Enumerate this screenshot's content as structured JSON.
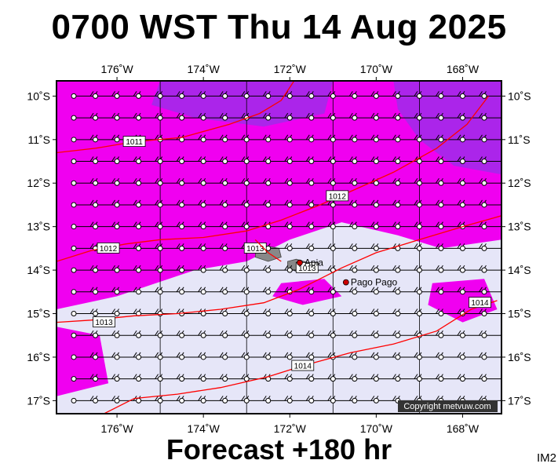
{
  "title": "0700 WST Thu 14 Aug 2025",
  "subtitle": "Forecast +180 hr",
  "map_id": "IM2",
  "copyright": "Copyright metvuw.com",
  "colors": {
    "background": "#e6e6f8",
    "wind_strong": "#f000f0",
    "wind_very_strong": "#9a2ee8",
    "isobar": "#ff0000",
    "land": "#888888",
    "frame": "#000000"
  },
  "map_extent": {
    "lon_min": -177.4,
    "lon_max": -167.1,
    "lat_min": -17.3,
    "lat_max": -9.65
  },
  "x_ticks": [
    {
      "value": -176,
      "label": "176˚W"
    },
    {
      "value": -174,
      "label": "174˚W"
    },
    {
      "value": -172,
      "label": "172˚W"
    },
    {
      "value": -170,
      "label": "170˚W"
    },
    {
      "value": -168,
      "label": "168˚W"
    }
  ],
  "y_ticks": [
    {
      "value": -10,
      "label": "10˚S"
    },
    {
      "value": -11,
      "label": "11˚S"
    },
    {
      "value": -12,
      "label": "12˚S"
    },
    {
      "value": -13,
      "label": "13˚S"
    },
    {
      "value": -14,
      "label": "14˚S"
    },
    {
      "value": -15,
      "label": "15˚S"
    },
    {
      "value": -16,
      "label": "16˚S"
    },
    {
      "value": -17,
      "label": "17˚S"
    }
  ],
  "isobars": [
    {
      "value": 1011,
      "label": "1011",
      "label_at": [
        -175.6,
        -11.05
      ],
      "points": [
        [
          -177.4,
          -11.3
        ],
        [
          -176.5,
          -11.2
        ],
        [
          -175.6,
          -11.05
        ],
        [
          -174.5,
          -10.95
        ],
        [
          -173.4,
          -10.65
        ],
        [
          -172.7,
          -10.4
        ],
        [
          -172.2,
          -10.1
        ],
        [
          -171.9,
          -9.65
        ]
      ]
    },
    {
      "value": 1012,
      "label": "1012",
      "label_at": [
        -176.2,
        -13.5
      ],
      "points": [
        [
          -177.4,
          -13.8
        ],
        [
          -176.6,
          -13.55
        ],
        [
          -175.8,
          -13.4
        ],
        [
          -175.0,
          -13.3
        ],
        [
          -174.0,
          -13.25
        ],
        [
          -173.0,
          -13.1
        ],
        [
          -172.2,
          -12.85
        ],
        [
          -171.3,
          -12.5
        ],
        [
          -170.5,
          -12.15
        ],
        [
          -169.6,
          -11.75
        ],
        [
          -168.6,
          -11.2
        ],
        [
          -167.9,
          -10.65
        ],
        [
          -167.4,
          -10.0
        ]
      ]
    },
    {
      "value": 1012,
      "label": "1012",
      "label_at": [
        -170.9,
        -12.3
      ],
      "points": [
        [
          -170.9,
          -12.3
        ]
      ]
    },
    {
      "value": 1013,
      "label": "1013",
      "label_at": [
        -172.8,
        -13.5
      ],
      "points": [
        [
          -177.4,
          -15.2
        ],
        [
          -176.6,
          -15.15
        ],
        [
          -175.6,
          -15.05
        ],
        [
          -174.6,
          -15.0
        ],
        [
          -173.6,
          -14.9
        ],
        [
          -172.6,
          -14.75
        ],
        [
          -171.8,
          -14.45
        ],
        [
          -171.3,
          -14.2
        ],
        [
          -170.8,
          -13.95
        ],
        [
          -170.0,
          -13.6
        ],
        [
          -169.0,
          -13.3
        ],
        [
          -168.0,
          -13.0
        ],
        [
          -167.1,
          -12.75
        ]
      ]
    },
    {
      "value": 1013,
      "label": "1013",
      "label_at": [
        -171.6,
        -13.95
      ],
      "points": [
        [
          -172.8,
          -13.3
        ],
        [
          -172.5,
          -13.6
        ],
        [
          -172.2,
          -13.8
        ]
      ]
    },
    {
      "value": 1013,
      "label": "1013",
      "label_at": [
        -176.3,
        -15.2
      ],
      "points": [
        [
          -176.3,
          -15.2
        ]
      ]
    },
    {
      "value": 1014,
      "label": "1014",
      "label_at": [
        -171.7,
        -16.2
      ],
      "points": [
        [
          -176.5,
          -17.4
        ],
        [
          -175.6,
          -16.95
        ],
        [
          -174.6,
          -16.85
        ],
        [
          -173.6,
          -16.7
        ],
        [
          -172.5,
          -16.45
        ],
        [
          -171.7,
          -16.2
        ],
        [
          -170.6,
          -15.9
        ],
        [
          -169.6,
          -15.7
        ],
        [
          -168.6,
          -15.4
        ],
        [
          -167.8,
          -14.9
        ],
        [
          -167.2,
          -14.7
        ]
      ]
    },
    {
      "value": 1014,
      "label": "1014",
      "label_at": [
        -167.6,
        -14.75
      ],
      "points": [
        [
          -167.6,
          -14.75
        ]
      ]
    }
  ],
  "places": [
    {
      "name": "Apia",
      "lon": -171.77,
      "lat": -13.83
    },
    {
      "name": "Pago Pago",
      "lon": -170.7,
      "lat": -14.28
    }
  ],
  "wind_speed_zones": [
    {
      "level": "strong",
      "polygon": [
        [
          -177.4,
          -9.65
        ],
        [
          -167.1,
          -9.65
        ],
        [
          -167.1,
          -13.3
        ],
        [
          -168.5,
          -13.5
        ],
        [
          -169.5,
          -13.2
        ],
        [
          -170.8,
          -12.9
        ],
        [
          -172.0,
          -13.3
        ],
        [
          -173.0,
          -13.8
        ],
        [
          -174.2,
          -14.0
        ],
        [
          -176.0,
          -14.6
        ],
        [
          -177.4,
          -14.9
        ]
      ]
    },
    {
      "level": "strong",
      "polygon": [
        [
          -177.4,
          -15.3
        ],
        [
          -176.4,
          -15.5
        ],
        [
          -176.2,
          -16.6
        ],
        [
          -177.4,
          -16.9
        ]
      ]
    },
    {
      "level": "strong",
      "polygon": [
        [
          -172.2,
          -14.3
        ],
        [
          -171.2,
          -14.2
        ],
        [
          -170.8,
          -14.6
        ],
        [
          -171.7,
          -14.8
        ],
        [
          -172.4,
          -14.6
        ]
      ]
    },
    {
      "level": "strong",
      "polygon": [
        [
          -168.7,
          -14.3
        ],
        [
          -167.5,
          -14.2
        ],
        [
          -167.2,
          -14.9
        ],
        [
          -168.0,
          -15.2
        ],
        [
          -168.8,
          -14.8
        ]
      ]
    },
    {
      "level": "very_strong",
      "polygon": [
        [
          -175.0,
          -9.65
        ],
        [
          -171.0,
          -9.65
        ],
        [
          -171.2,
          -10.4
        ],
        [
          -172.6,
          -10.7
        ],
        [
          -174.2,
          -10.5
        ],
        [
          -175.2,
          -10.2
        ]
      ]
    },
    {
      "level": "very_strong",
      "polygon": [
        [
          -169.6,
          -9.65
        ],
        [
          -167.1,
          -9.65
        ],
        [
          -167.1,
          -11.8
        ],
        [
          -168.2,
          -11.6
        ],
        [
          -169.0,
          -11.0
        ],
        [
          -169.5,
          -10.3
        ]
      ]
    }
  ],
  "land_areas": [
    {
      "name": "",
      "polygon": [
        [
          -172.78,
          -13.52
        ],
        [
          -172.5,
          -13.45
        ],
        [
          -172.25,
          -13.5
        ],
        [
          -172.2,
          -13.7
        ],
        [
          -172.5,
          -13.8
        ],
        [
          -172.8,
          -13.7
        ]
      ]
    },
    {
      "name": "",
      "polygon": [
        [
          -172.05,
          -13.8
        ],
        [
          -171.85,
          -13.75
        ],
        [
          -171.5,
          -13.85
        ],
        [
          -171.4,
          -14.05
        ],
        [
          -171.8,
          -14.05
        ],
        [
          -172.05,
          -13.95
        ]
      ]
    }
  ],
  "wind_barb_grid": {
    "lon_start": -177.0,
    "lon_step": 0.5,
    "lat_start": -10.0,
    "lat_step": -0.5,
    "nx": 20,
    "ny": 15
  }
}
